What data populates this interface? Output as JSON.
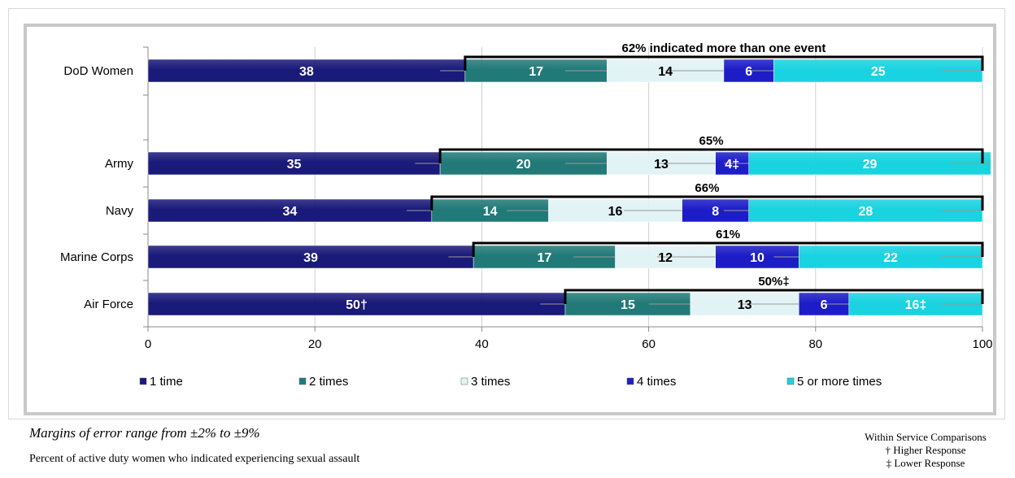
{
  "chart_data": {
    "type": "bar",
    "orientation": "horizontal",
    "stacked": true,
    "categories": [
      "DoD Women",
      "Army",
      "Navy",
      "Marine Corps",
      "Air Force"
    ],
    "series": [
      {
        "name": "1 time",
        "color": "#1a1a7a",
        "values": [
          38,
          35,
          34,
          39,
          50
        ],
        "labels": [
          "38",
          "35",
          "34",
          "39",
          "50†"
        ]
      },
      {
        "name": "2 times",
        "color": "#217a78",
        "values": [
          17,
          20,
          14,
          17,
          15
        ],
        "labels": [
          "17",
          "20",
          "14",
          "17",
          "15"
        ]
      },
      {
        "name": "3 times",
        "color": "#e2f3f5",
        "values": [
          14,
          13,
          16,
          12,
          13
        ],
        "labels": [
          "14",
          "13",
          "16",
          "12",
          "13"
        ]
      },
      {
        "name": "4 times",
        "color": "#1d1dc8",
        "values": [
          6,
          4,
          8,
          10,
          6
        ],
        "labels": [
          "6",
          "4‡",
          "8",
          "10",
          "6"
        ]
      },
      {
        "name": "5 or more times",
        "color": "#19d3e0",
        "values": [
          25,
          29,
          28,
          22,
          16
        ],
        "labels": [
          "25",
          "29",
          "28",
          "22",
          "16‡"
        ]
      }
    ],
    "brackets": [
      "62% indicated more than one event",
      "65%",
      "66%",
      "61%",
      "50%‡"
    ],
    "xlim": [
      0,
      100
    ],
    "xticks": [
      "0",
      "20",
      "40",
      "60",
      "80",
      "100"
    ],
    "grid": true,
    "legend": "bottom"
  },
  "footer": {
    "margins": "Margins of error range from ±2% to ±9%",
    "note": "Percent of active duty women who indicated experiencing sexual assault",
    "comparisons_title": "Within Service Comparisons",
    "higher": "† Higher Response",
    "lower": "‡ Lower Response"
  }
}
